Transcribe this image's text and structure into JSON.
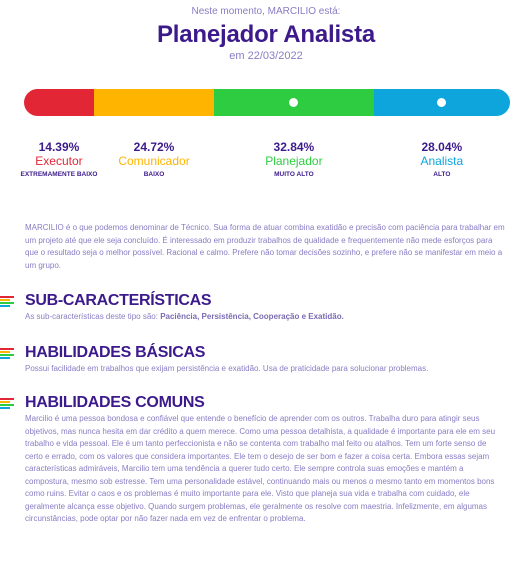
{
  "header": {
    "subtitle": "Neste momento, MARCILIO está:",
    "title": "Planejador Analista",
    "date": "em 22/03/2022"
  },
  "profile_bar": {
    "segments": [
      {
        "color": "#e32636",
        "share": 14.39,
        "marked": false
      },
      {
        "color": "#ffb400",
        "share": 24.72,
        "marked": false
      },
      {
        "color": "#2ecc40",
        "share": 32.84,
        "marked": true
      },
      {
        "color": "#0ea5dc",
        "share": 28.04,
        "marked": true
      }
    ]
  },
  "profiles": [
    {
      "percent": "14.39%",
      "name": "Executor",
      "level": "EXTREMAMENTE BAIXO",
      "color": "#e32636"
    },
    {
      "percent": "24.72%",
      "name": "Comunicador",
      "level": "BAIXO",
      "color": "#ffb400"
    },
    {
      "percent": "32.84%",
      "name": "Planejador",
      "level": "MUITO ALTO",
      "color": "#2ecc40"
    },
    {
      "percent": "28.04%",
      "name": "Analista",
      "level": "ALTO",
      "color": "#0ea5dc"
    }
  ],
  "description": "MARCILIO é o que podemos denominar de Técnico. Sua forma de atuar combina exatidão e precisão com paciência para trabalhar em um projeto até que ele seja concluído. É interessado em produzir trabalhos de qualidade e frequentemente não mede esforços para que o resultado seja o melhor possível. Racional e calmo. Prefere não tomar decisões sozinho, e prefere não se manifestar em meio a um grupo.",
  "sub_caracteristicas": {
    "title": "SUB-CARACTERÍSTICAS",
    "intro": "As sub-características deste tipo são:",
    "items": "Paciência, Persistência, Cooperação e Exatidão."
  },
  "habilidades_basicas": {
    "title": "HABILIDADES BÁSICAS",
    "text": "Possui facilidade em trabalhos que exijam persistência e exatidão. Usa de praticidade para solucionar problemas."
  },
  "habilidades_comuns": {
    "title": "HABILIDADES COMUNS",
    "text": "Marcilio é uma pessoa bondosa e confiável que entende o benefício de aprender com os outros. Trabalha duro para atingir seus objetivos, mas nunca hesita em dar crédito a quem merece. Como uma pessoa detalhista, a qualidade é importante para ele em seu trabalho e vida pessoal. Ele é um tanto perfeccionista e não se contenta com trabalho mal feito ou atalhos. Tem um forte senso de certo e errado, com os valores que considera importantes. Ele tem o desejo de ser bom e fazer a coisa certa. Embora essas sejam características admiráveis, Marcilio tem uma tendência a querer tudo certo. Ele sempre controla suas emoções e mantém a compostura, mesmo sob estresse. Tem uma personalidade estável, continuando mais ou menos o mesmo tanto em momentos bons como ruins. Evitar o caos e os problemas é muito importante para ele. Visto que planeja sua vida e trabalha com cuidado, ele geralmente alcança esse objetivo. Quando surgem problemas, ele geralmente os resolve com maestria. Infelizmente, em algumas circunstâncias, pode optar por não fazer nada em vez de enfrentar o problema."
  },
  "section_icon_colors": [
    "#e32636",
    "#ffb400",
    "#2ecc40",
    "#0ea5dc"
  ]
}
